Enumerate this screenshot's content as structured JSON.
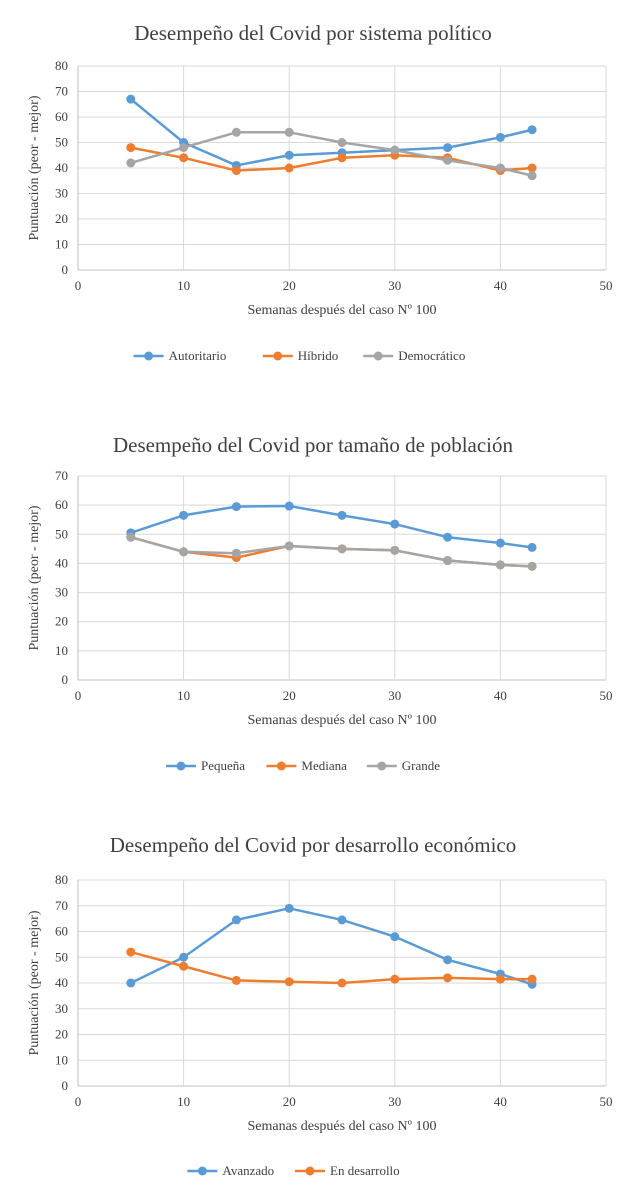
{
  "chart_data": [
    {
      "type": "line",
      "title": "Desempeño del Covid por sistema político",
      "xlabel": "Semanas después del caso Nº 100",
      "ylabel": "Puntuación (peor - mejor)",
      "xlim": [
        0,
        50
      ],
      "ylim": [
        0,
        80
      ],
      "xticks": [
        0,
        10,
        20,
        30,
        40,
        50
      ],
      "yticks": [
        0,
        10,
        20,
        30,
        40,
        50,
        60,
        70,
        80
      ],
      "grid": true,
      "legend": "bottom",
      "x": [
        5,
        10,
        15,
        20,
        25,
        30,
        35,
        40,
        43
      ],
      "series": [
        {
          "name": "Autoritario",
          "color": "#5B9BD5",
          "values": [
            67,
            50,
            41,
            45,
            46,
            47,
            48,
            52,
            55
          ]
        },
        {
          "name": "Híbrido",
          "color": "#ED7D31",
          "values": [
            48,
            44,
            39,
            40,
            44,
            45,
            44,
            39,
            40
          ]
        },
        {
          "name": "Democrático",
          "color": "#A5A5A5",
          "values": [
            42,
            48,
            54,
            54,
            50,
            47,
            43,
            40,
            37
          ]
        }
      ]
    },
    {
      "type": "line",
      "title": "Desempeño del Covid por tamaño de población",
      "xlabel": "Semanas después del caso Nº 100",
      "ylabel": "Puntuación (peor - mejor)",
      "xlim": [
        0,
        50
      ],
      "ylim": [
        0,
        70
      ],
      "xticks": [
        0,
        10,
        20,
        30,
        40,
        50
      ],
      "yticks": [
        0,
        10,
        20,
        30,
        40,
        50,
        60,
        70
      ],
      "grid": true,
      "legend": "bottom",
      "x": [
        5,
        10,
        15,
        20,
        25,
        30,
        35,
        40,
        43
      ],
      "series": [
        {
          "name": "Pequeña",
          "color": "#5B9BD5",
          "values": [
            50.5,
            56.5,
            59.5,
            59.7,
            56.5,
            53.5,
            49,
            47,
            45.5
          ]
        },
        {
          "name": "Mediana",
          "color": "#ED7D31",
          "values": [
            49,
            44,
            42,
            46,
            45,
            44.5,
            41,
            39.5,
            39
          ]
        },
        {
          "name": "Grande",
          "color": "#A5A5A5",
          "values": [
            49,
            44,
            43.5,
            46,
            45,
            44.5,
            41,
            39.5,
            39
          ]
        }
      ]
    },
    {
      "type": "line",
      "title": "Desempeño del Covid por desarrollo económico",
      "xlabel": "Semanas después del caso Nº 100",
      "ylabel": "Puntuación (peor - mejor)",
      "xlim": [
        0,
        50
      ],
      "ylim": [
        0,
        80
      ],
      "xticks": [
        0,
        10,
        20,
        30,
        40,
        50
      ],
      "yticks": [
        0,
        10,
        20,
        30,
        40,
        50,
        60,
        70,
        80
      ],
      "grid": true,
      "legend": "bottom",
      "x": [
        5,
        10,
        15,
        20,
        25,
        30,
        35,
        40,
        43
      ],
      "series": [
        {
          "name": "Avanzado",
          "color": "#5B9BD5",
          "values": [
            40,
            50,
            64.5,
            69,
            64.5,
            58,
            49,
            43.5,
            39.5
          ]
        },
        {
          "name": "En desarrollo",
          "color": "#ED7D31",
          "values": [
            52,
            46.5,
            41,
            40.5,
            40,
            41.5,
            42,
            41.5,
            41.5
          ]
        }
      ]
    }
  ]
}
